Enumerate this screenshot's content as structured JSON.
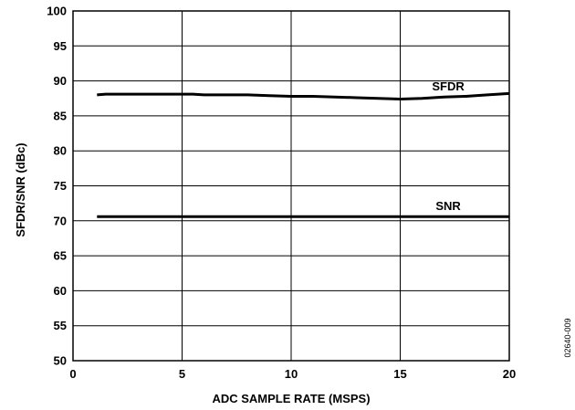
{
  "chart_data": {
    "type": "line",
    "xlabel": "ADC SAMPLE RATE (MSPS)",
    "ylabel": "SFDR/SNR (dBc)",
    "xlim": [
      0,
      20
    ],
    "ylim": [
      50,
      100
    ],
    "xticks": [
      0,
      5,
      10,
      15,
      20
    ],
    "yticks": [
      50,
      55,
      60,
      65,
      70,
      75,
      80,
      85,
      90,
      95,
      100
    ],
    "grid": true,
    "series": [
      {
        "name": "SFDR",
        "x": [
          1.1,
          1.5,
          2,
          3,
          4,
          5,
          5.5,
          6,
          7,
          8,
          9,
          10,
          11,
          12,
          13,
          14,
          15,
          16,
          17,
          18,
          19,
          20
        ],
        "y": [
          88.0,
          88.1,
          88.1,
          88.1,
          88.1,
          88.1,
          88.1,
          88.0,
          88.0,
          88.0,
          87.9,
          87.8,
          87.8,
          87.7,
          87.6,
          87.5,
          87.4,
          87.5,
          87.7,
          87.8,
          88.0,
          88.2
        ]
      },
      {
        "name": "SNR",
        "x": [
          1.1,
          5,
          10,
          15,
          20
        ],
        "y": [
          70.6,
          70.6,
          70.6,
          70.6,
          70.6
        ]
      }
    ],
    "figure_id": "02640-009"
  },
  "colors": {
    "line": "#000000",
    "grid": "#000000",
    "background": "#ffffff"
  }
}
